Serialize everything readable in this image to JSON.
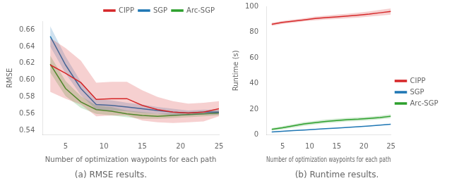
{
  "chart_data": [
    {
      "type": "line",
      "title": "(a) RMSE results.",
      "xlabel": "Number of optimization waypoints for each path",
      "ylabel": "RMSE",
      "x": [
        3,
        5,
        7,
        9,
        11,
        13,
        15,
        17,
        19,
        21,
        23,
        25
      ],
      "xlim": [
        2,
        25
      ],
      "xticks": [
        5,
        10,
        15,
        20,
        25
      ],
      "ylim": [
        0.535,
        0.67
      ],
      "yticks": [
        0.54,
        0.56,
        0.58,
        {
          "value": 0.6,
          "label": "0.60"
        },
        0.62,
        0.64,
        0.66
      ],
      "grid": false,
      "legend": "upper right",
      "series": [
        {
          "name": "CIPP",
          "color": "#d62728",
          "values": [
            0.618,
            0.608,
            0.597,
            0.577,
            0.578,
            0.578,
            0.57,
            0.565,
            0.562,
            0.561,
            0.562,
            0.566
          ],
          "lower": [
            0.586,
            0.578,
            0.571,
            0.557,
            0.558,
            0.558,
            0.552,
            0.55,
            0.549,
            0.55,
            0.551,
            0.557
          ],
          "upper": [
            0.65,
            0.638,
            0.623,
            0.597,
            0.598,
            0.598,
            0.588,
            0.58,
            0.575,
            0.572,
            0.573,
            0.575
          ]
        },
        {
          "name": "SGP",
          "color": "#1f77b4",
          "values": [
            0.652,
            0.618,
            0.59,
            0.571,
            0.57,
            0.568,
            0.566,
            0.564,
            0.562,
            0.561,
            0.562,
            0.562
          ],
          "lower": [
            0.64,
            0.608,
            0.582,
            0.565,
            0.564,
            0.563,
            0.561,
            0.56,
            0.558,
            0.558,
            0.559,
            0.559
          ],
          "upper": [
            0.664,
            0.628,
            0.598,
            0.577,
            0.576,
            0.573,
            0.571,
            0.568,
            0.566,
            0.564,
            0.565,
            0.565
          ]
        },
        {
          "name": "Arc-SGP",
          "color": "#2ca02c",
          "values": [
            0.619,
            0.59,
            0.574,
            0.565,
            0.563,
            0.56,
            0.558,
            0.557,
            0.558,
            0.559,
            0.56,
            0.561
          ],
          "lower": [
            0.609,
            0.581,
            0.567,
            0.56,
            0.558,
            0.556,
            0.554,
            0.554,
            0.555,
            0.556,
            0.557,
            0.558
          ],
          "upper": [
            0.629,
            0.599,
            0.581,
            0.57,
            0.568,
            0.564,
            0.562,
            0.56,
            0.561,
            0.562,
            0.563,
            0.564
          ]
        }
      ]
    },
    {
      "type": "line",
      "title": "(b) Runtime results.",
      "xlabel": "Number of optimization waypoints for each path",
      "ylabel": "Runtime (s)",
      "x": [
        3,
        5,
        7,
        9,
        11,
        13,
        15,
        17,
        19,
        21,
        23,
        25
      ],
      "xlim": [
        2,
        25
      ],
      "xticks": [
        5,
        10,
        15,
        20,
        25
      ],
      "ylim": [
        0,
        100
      ],
      "yticks": [
        0,
        20,
        40,
        60,
        80,
        100
      ],
      "grid": false,
      "legend": "center right",
      "series": [
        {
          "name": "CIPP",
          "color": "#d62728",
          "values": [
            86.0,
            87.5,
            88.5,
            89.5,
            90.5,
            91.2,
            91.8,
            92.5,
            93.2,
            94.0,
            95.0,
            96.0
          ],
          "lower": [
            84.8,
            86.3,
            87.3,
            88.3,
            89.0,
            89.7,
            90.1,
            90.7,
            91.3,
            92.0,
            92.8,
            93.6
          ],
          "upper": [
            87.2,
            88.7,
            89.7,
            90.7,
            92.0,
            92.7,
            93.5,
            94.3,
            95.1,
            96.0,
            97.2,
            98.4
          ]
        },
        {
          "name": "SGP",
          "color": "#1f77b4",
          "values": [
            2.2,
            2.8,
            3.3,
            3.8,
            4.3,
            4.8,
            5.3,
            5.8,
            6.3,
            6.9,
            7.6,
            8.3
          ],
          "lower": [
            2.0,
            2.6,
            3.1,
            3.6,
            4.1,
            4.6,
            5.1,
            5.6,
            6.1,
            6.7,
            7.4,
            8.1
          ],
          "upper": [
            2.4,
            3.0,
            3.5,
            4.0,
            4.5,
            5.0,
            5.5,
            6.0,
            6.5,
            7.1,
            7.8,
            8.5
          ]
        },
        {
          "name": "Arc-SGP",
          "color": "#2ca02c",
          "values": [
            4.3,
            5.5,
            7.0,
            8.5,
            9.5,
            10.5,
            11.2,
            11.8,
            12.2,
            12.8,
            13.5,
            14.5
          ],
          "lower": [
            3.3,
            4.3,
            5.7,
            7.1,
            8.1,
            9.1,
            9.8,
            10.4,
            10.8,
            11.4,
            12.1,
            13.1
          ],
          "upper": [
            5.3,
            6.7,
            8.3,
            9.9,
            10.9,
            11.9,
            12.6,
            13.2,
            13.6,
            14.2,
            14.9,
            15.9
          ]
        }
      ]
    }
  ]
}
